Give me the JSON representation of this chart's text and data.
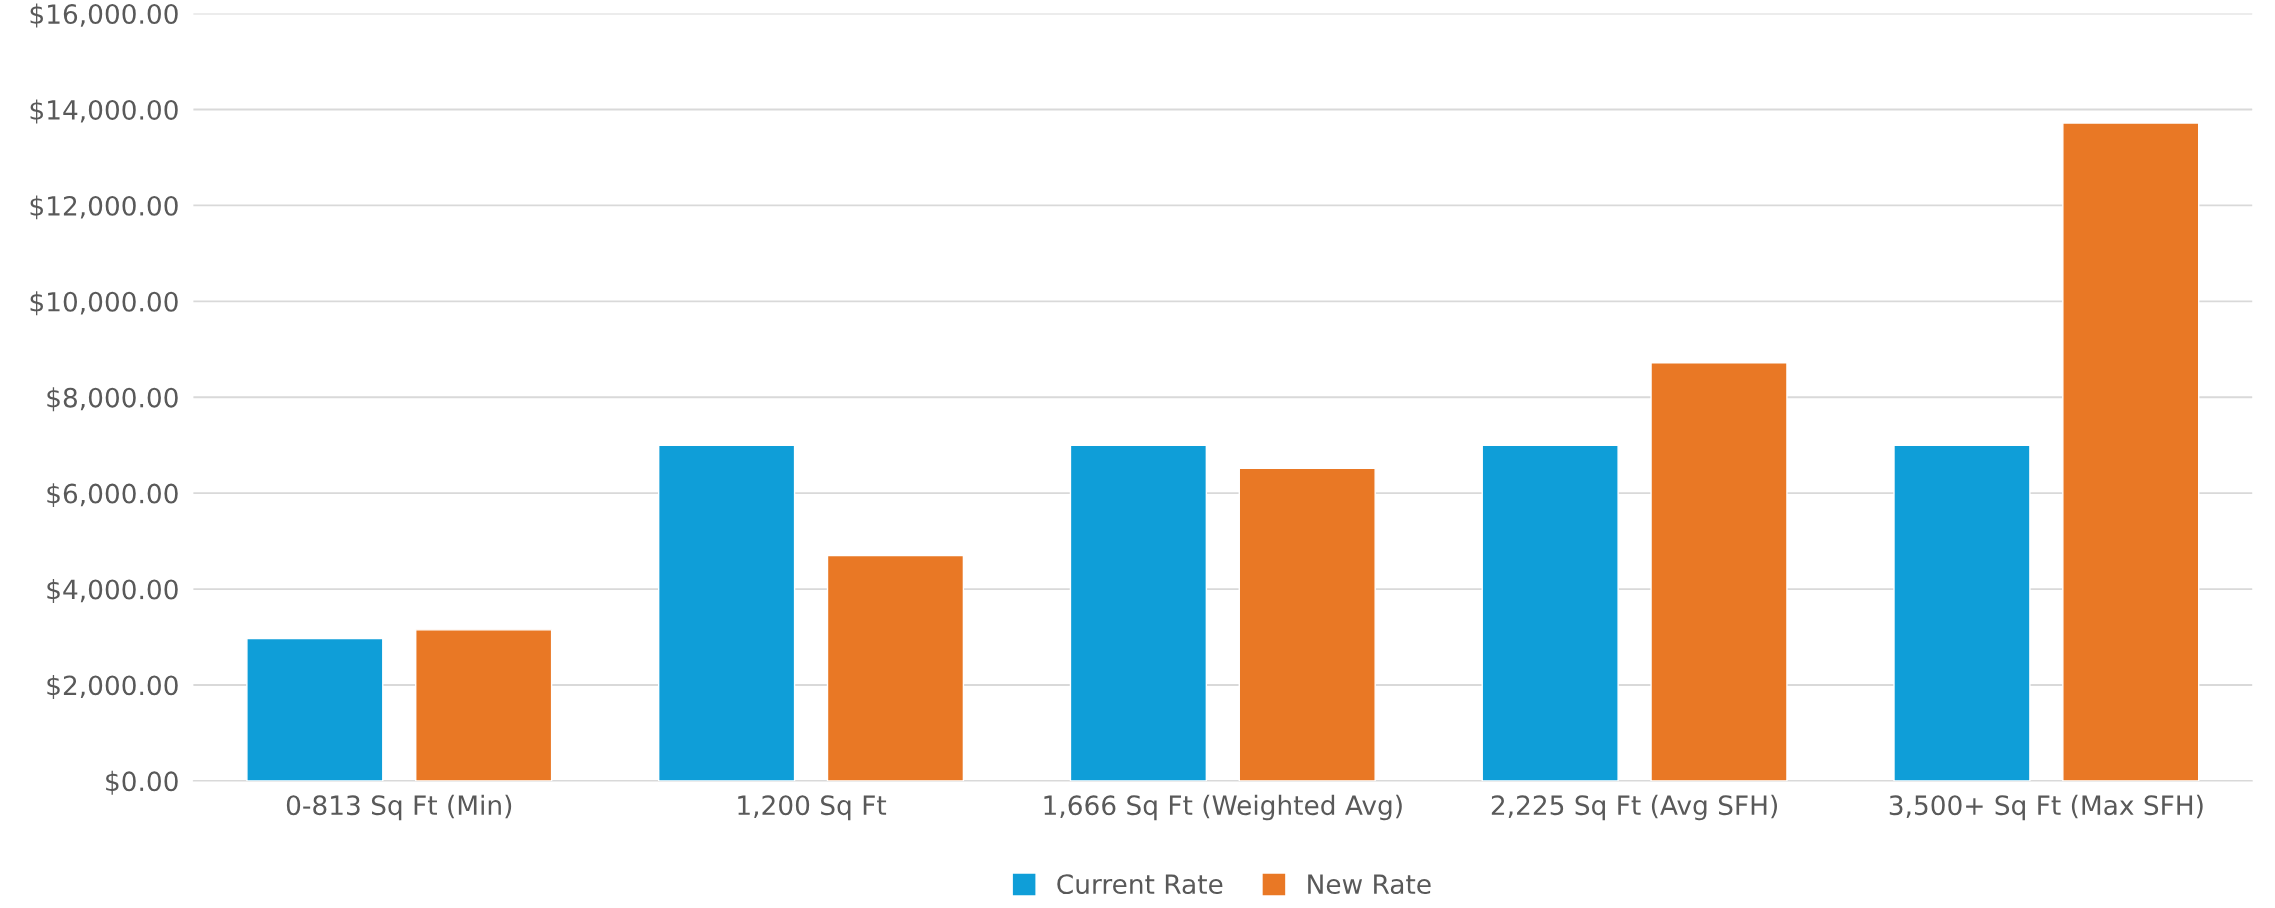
{
  "chart_data": {
    "type": "bar",
    "categories": [
      "0-813 Sq Ft (Min)",
      "1,200 Sq Ft",
      "1,666 Sq Ft (Weighted Avg)",
      "2,225 Sq Ft (Avg SFH)",
      "3,500+ Sq Ft (Max SFH)"
    ],
    "series": [
      {
        "name": "Current Rate",
        "color": "#0f9ed8",
        "values": [
          2970,
          7000,
          7000,
          7000,
          7000
        ]
      },
      {
        "name": "New Rate",
        "color": "#e97825",
        "values": [
          3150,
          4700,
          6520,
          8720,
          13720
        ]
      }
    ],
    "ylim": [
      0,
      16000
    ],
    "yticks": [
      {
        "value": 0,
        "label": "$0.00"
      },
      {
        "value": 2000,
        "label": "$2,000.00"
      },
      {
        "value": 4000,
        "label": "$4,000.00"
      },
      {
        "value": 6000,
        "label": "$6,000.00"
      },
      {
        "value": 8000,
        "label": "$8,000.00"
      },
      {
        "value": 10000,
        "label": "$10,000.00"
      },
      {
        "value": 12000,
        "label": "$12,000.00"
      },
      {
        "value": 14000,
        "label": "$14,000.00"
      },
      {
        "value": 16000,
        "label": "$16,000.00"
      }
    ],
    "grid": "y",
    "legend": "bottom"
  }
}
